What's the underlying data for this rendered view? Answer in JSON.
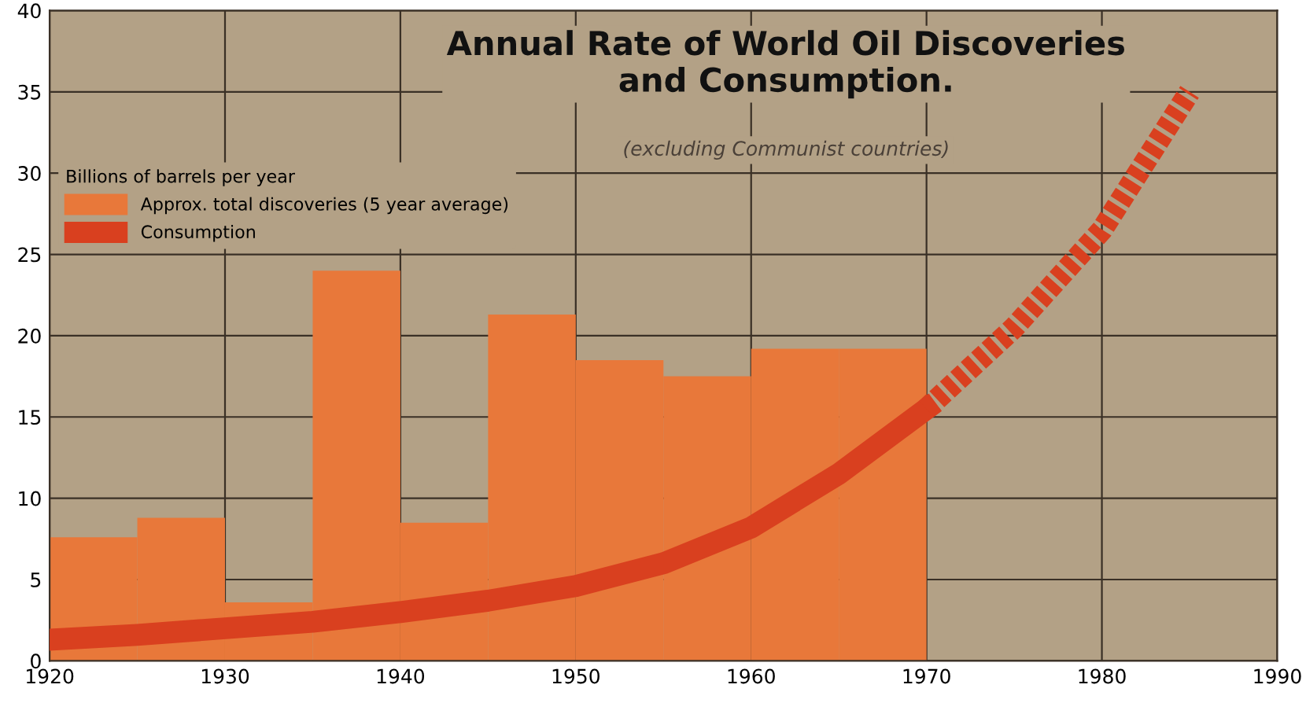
{
  "chart_data": {
    "type": "histogram",
    "title": "Annual Rate of World Oil Discoveries\nand Consumption.",
    "subtitle": "(excluding Communist countries)",
    "legend_title": "Billions of barrels per year",
    "series": [
      {
        "name": "Approx. total discoveries (5 year average)",
        "color": "#e8783a",
        "bins": [
          1920,
          1925,
          1930,
          1935,
          1940,
          1945,
          1950,
          1955,
          1960,
          1965,
          1970
        ],
        "values": [
          7.6,
          8.8,
          3.6,
          24,
          8.5,
          21.3,
          18.5,
          17.5,
          19.2,
          19.2
        ]
      },
      {
        "type": "line",
        "name": "Consumption",
        "color": "#d9401f",
        "line_style": "solid",
        "x": [
          1920,
          1925,
          1930,
          1935,
          1940,
          1945,
          1950,
          1955,
          1960,
          1965,
          1970
        ],
        "values": [
          1.3,
          1.6,
          2.0,
          2.4,
          3.0,
          3.7,
          4.6,
          6.0,
          8.2,
          11.5,
          15.5
        ]
      },
      {
        "type": "line",
        "color": "#d9401f",
        "line_style": "dashed",
        "x": [
          1970,
          1975,
          1980,
          1985
        ],
        "values": [
          15.5,
          20.5,
          26.5,
          35
        ]
      }
    ],
    "xlim": [
      1920,
      1990
    ],
    "xticks": [
      1920,
      1930,
      1940,
      1950,
      1960,
      1970,
      1980,
      1990
    ],
    "ylim": [
      0,
      40
    ],
    "yticks": [
      0,
      5,
      10,
      15,
      20,
      25,
      30,
      35,
      40
    ],
    "grid": true,
    "legend": "top left"
  }
}
